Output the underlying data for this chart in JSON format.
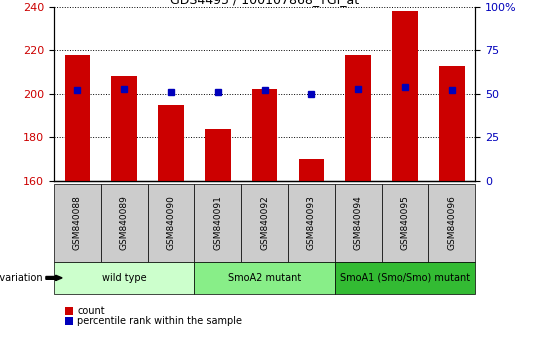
{
  "samples": [
    "GSM840088",
    "GSM840089",
    "GSM840090",
    "GSM840091",
    "GSM840092",
    "GSM840093",
    "GSM840094",
    "GSM840095",
    "GSM840096"
  ],
  "counts": [
    218,
    208,
    195,
    184,
    202,
    170,
    218,
    238,
    213
  ],
  "percentile_ranks": [
    52,
    53,
    51,
    51,
    52,
    50,
    53,
    54,
    52
  ],
  "count_baseline": 160,
  "ylim_left": [
    160,
    240
  ],
  "ylim_right": [
    0,
    100
  ],
  "yticks_left": [
    160,
    180,
    200,
    220,
    240
  ],
  "yticks_right": [
    0,
    25,
    50,
    75,
    100
  ],
  "bar_color": "#cc0000",
  "dot_color": "#0000bb",
  "bar_width": 0.55,
  "grid_color": "#000000",
  "groups": [
    {
      "label": "wild type",
      "indices": [
        0,
        1,
        2
      ],
      "color": "#ccffcc"
    },
    {
      "label": "SmoA2 mutant",
      "indices": [
        3,
        4,
        5
      ],
      "color": "#88ee88"
    },
    {
      "label": "SmoA1 (Smo/Smo) mutant",
      "indices": [
        6,
        7,
        8
      ],
      "color": "#33bb33"
    }
  ],
  "legend_count_label": "count",
  "legend_pct_label": "percentile rank within the sample",
  "sample_box_color": "#cccccc",
  "bg_color": "#ffffff",
  "plot_bg_color": "#ffffff",
  "tick_label_color_left": "#cc0000",
  "tick_label_color_right": "#0000bb"
}
